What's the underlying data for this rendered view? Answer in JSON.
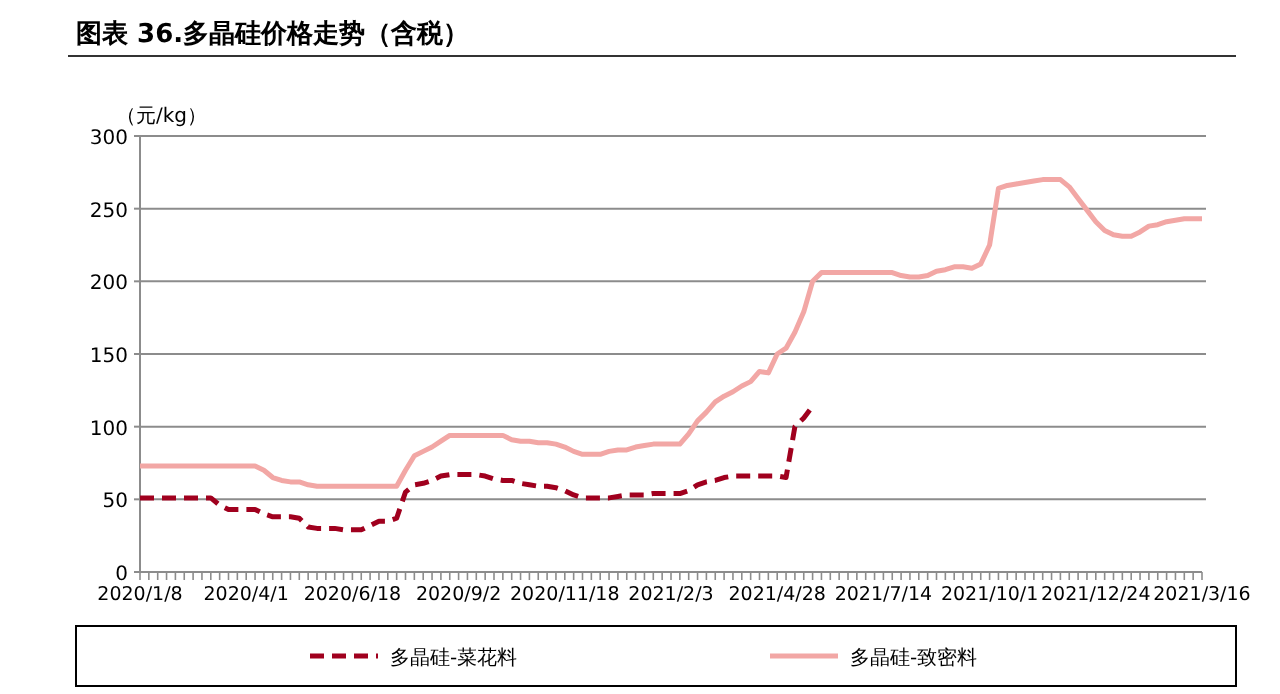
{
  "chart_data": {
    "type": "line",
    "title": "图表 36.多晶硅价格走势（含税）",
    "ylabel": "（元/kg）",
    "categories": [
      "2020/1/8",
      null,
      null,
      null,
      null,
      null,
      null,
      null,
      null,
      null,
      null,
      null,
      "2020/4/1",
      null,
      null,
      null,
      null,
      null,
      null,
      null,
      null,
      null,
      null,
      null,
      "2020/6/18",
      null,
      null,
      null,
      null,
      null,
      null,
      null,
      null,
      null,
      null,
      null,
      "2020/9/2",
      null,
      null,
      null,
      null,
      null,
      null,
      null,
      null,
      null,
      null,
      null,
      "2020/11/18",
      null,
      null,
      null,
      null,
      null,
      null,
      null,
      null,
      null,
      null,
      null,
      "2021/2/3",
      null,
      null,
      null,
      null,
      null,
      null,
      null,
      null,
      null,
      null,
      null,
      "2021/4/28",
      null,
      null,
      null,
      null,
      null,
      null,
      null,
      null,
      null,
      null,
      null,
      "2021/7/14",
      null,
      null,
      null,
      null,
      null,
      null,
      null,
      null,
      null,
      null,
      null,
      "2021/10/1",
      null,
      null,
      null,
      null,
      null,
      null,
      null,
      null,
      null,
      null,
      null,
      "2021/12/24",
      null,
      null,
      null,
      null,
      null,
      null,
      null,
      null,
      null,
      null,
      null,
      "2021/3/16"
    ],
    "series": [
      {
        "name": "多晶硅-菜花料",
        "color": "#a0001e",
        "line_style": "dashed",
        "values": [
          51,
          51,
          51,
          51,
          51,
          51,
          51,
          51,
          51,
          46,
          43,
          43,
          43,
          43,
          40,
          38,
          38,
          38,
          37,
          31,
          30,
          30,
          30,
          29,
          29,
          29,
          32,
          35,
          35,
          37,
          55,
          60,
          61,
          63,
          66,
          67,
          67,
          67,
          67,
          66,
          64,
          63,
          63,
          61,
          60,
          59,
          59,
          58,
          56,
          53,
          51,
          51,
          51,
          51,
          52,
          53,
          53,
          53,
          54,
          54,
          54,
          54,
          56,
          60,
          62,
          63,
          65,
          66,
          66,
          66,
          66,
          66,
          66,
          65,
          100,
          106,
          114,
          null,
          null,
          null,
          null,
          null,
          null,
          null,
          null,
          null,
          null,
          null,
          null,
          null,
          null,
          null,
          null,
          null,
          null,
          null,
          null,
          null,
          null,
          null,
          null,
          null,
          null,
          null,
          null,
          null,
          null,
          null,
          null,
          null,
          null,
          null,
          null,
          null,
          null,
          null,
          null,
          null,
          null,
          null,
          null
        ]
      },
      {
        "name": "多晶硅-致密料",
        "color": "#f2a7a5",
        "line_style": "solid",
        "values": [
          73,
          73,
          73,
          73,
          73,
          73,
          73,
          73,
          73,
          73,
          73,
          73,
          73,
          73,
          70,
          65,
          63,
          62,
          62,
          60,
          59,
          59,
          59,
          59,
          59,
          59,
          59,
          59,
          59,
          59,
          70,
          80,
          83,
          86,
          90,
          94,
          94,
          94,
          94,
          94,
          94,
          94,
          91,
          90,
          90,
          89,
          89,
          88,
          86,
          83,
          81,
          81,
          81,
          83,
          84,
          84,
          86,
          87,
          88,
          88,
          88,
          88,
          95,
          104,
          110,
          117,
          121,
          124,
          128,
          131,
          138,
          137,
          150,
          154,
          165,
          179,
          200,
          206,
          206,
          206,
          206,
          206,
          206,
          206,
          206,
          206,
          204,
          203,
          203,
          204,
          207,
          208,
          210,
          210,
          209,
          212,
          225,
          264,
          266,
          267,
          268,
          269,
          270,
          270,
          270,
          265,
          257,
          249,
          241,
          235,
          232,
          231,
          231,
          234,
          238,
          239,
          241,
          242,
          243,
          243,
          243
        ]
      }
    ],
    "ylim": [
      0,
      300
    ],
    "yticks": [
      0,
      50,
      100,
      150,
      200,
      250,
      300
    ],
    "grid": "y",
    "legend": "bottom"
  }
}
